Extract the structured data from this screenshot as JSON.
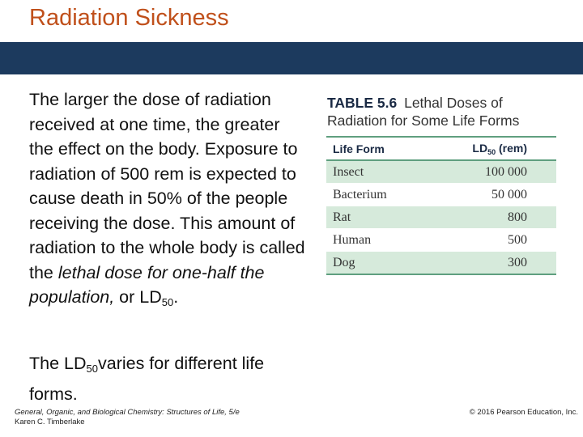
{
  "slide": {
    "title": "Radiation Sickness"
  },
  "body": {
    "p1_part1": "The larger the dose of radiation received at one time, the greater the effect on the body. Exposure to radiation of 500 rem is expected to cause death in 50% of the people receiving the dose. This amount of radiation to the whole body is called the ",
    "p1_italic": "lethal dose for one-half the population,",
    "p1_part2": " or LD",
    "p1_sub": "50",
    "p1_end": ".",
    "p2_part1": "The LD",
    "p2_sub": "50",
    "p2_part2": "varies for different life forms."
  },
  "table": {
    "number": "TABLE 5.6",
    "caption": "Lethal Doses of Radiation for Some Life Forms",
    "header": {
      "col1": "Life Form",
      "col2_main": "LD",
      "col2_sub": "50",
      "col2_unit": " (rem)"
    },
    "rows": [
      {
        "form": "Insect",
        "dose": "100 000"
      },
      {
        "form": "Bacterium",
        "dose": "50 000"
      },
      {
        "form": "Rat",
        "dose": "800"
      },
      {
        "form": "Human",
        "dose": "500"
      },
      {
        "form": "Dog",
        "dose": "300"
      }
    ]
  },
  "footer": {
    "book": "General, Organic, and Biological Chemistry: Structures of Life, 5/e",
    "author": "Karen C. Timberlake",
    "copyright": "© 2016 Pearson Education, Inc."
  },
  "colors": {
    "title": "#c0501b",
    "band": "#1c3a5e",
    "row_shade": "#d6eadb",
    "table_rule": "#5f9f7f"
  }
}
